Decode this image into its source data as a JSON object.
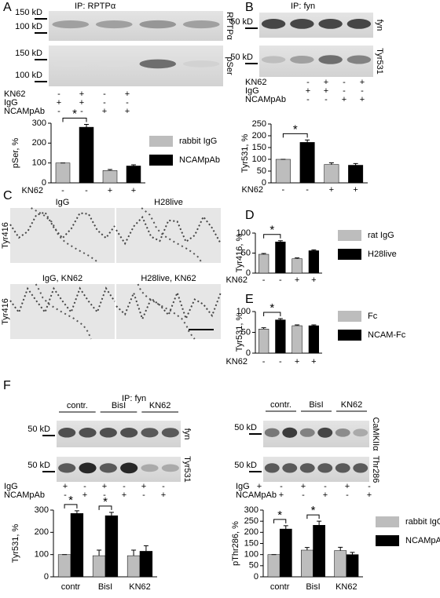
{
  "panel_letters": [
    "A",
    "B",
    "C",
    "D",
    "E",
    "F"
  ],
  "blots": [
    {
      "title": "IP: RPTPα",
      "markers": [
        "150 kD",
        "100 kD",
        "150 kD",
        "100 kD"
      ],
      "strips": [
        "RPTPα",
        "pSer"
      ],
      "rows": [
        {
          "name": "KN62",
          "signs": [
            "-",
            "+",
            "-",
            "+"
          ]
        },
        {
          "name": "IgG",
          "signs": [
            "+",
            "+",
            "-",
            "-"
          ]
        },
        {
          "name": "NCAMpAb",
          "signs": [
            "-",
            "-",
            "+",
            "+"
          ]
        }
      ]
    },
    {
      "title": "IP: fyn",
      "markers": [
        "50 kD",
        "50 kD"
      ],
      "strips": [
        "fyn",
        "Tyr531"
      ],
      "rows": [
        {
          "name": "KN62",
          "signs": [
            "-",
            "+",
            "-",
            "+"
          ]
        },
        {
          "name": "IgG",
          "signs": [
            "+",
            "+",
            "-",
            "-"
          ]
        },
        {
          "name": "NCAMpAb",
          "signs": [
            "-",
            "-",
            "+",
            "+"
          ]
        }
      ]
    },
    {
      "title": "IP: fyn",
      "groups": [
        "contr.",
        "BisI",
        "KN62"
      ],
      "markers": [
        "50 kD",
        "50 kD"
      ],
      "strips": [
        "fyn",
        "Tyr531"
      ],
      "rows": [
        {
          "name": "IgG",
          "signs": [
            "+",
            "-",
            "+",
            "-",
            "+",
            "-"
          ]
        },
        {
          "name": "NCAMpAb",
          "signs": [
            "-",
            "+",
            "-",
            "+",
            "-",
            "+"
          ]
        }
      ]
    },
    {
      "groups": [
        "contr.",
        "BisI",
        "KN62"
      ],
      "markers": [
        "50 kD",
        "50 kD"
      ],
      "strips": [
        "CaMKIIα",
        "Thr286"
      ],
      "rows": [
        {
          "name": "IgG",
          "signs": [
            "+",
            "-",
            "+",
            "-",
            "+",
            "-"
          ]
        },
        {
          "name": "NCAMpAb",
          "signs": [
            "-",
            "+",
            "-",
            "+",
            "-",
            "+"
          ]
        }
      ]
    }
  ],
  "micrographs": {
    "labels": [
      "IgG",
      "H28live",
      "IgG, KN62",
      "H28live, KN62"
    ],
    "stain": [
      "Tyr416",
      "Tyr416"
    ]
  },
  "chart_data": [
    {
      "type": "bar",
      "ylabel": "pSer, %",
      "xlabel": "KN62",
      "categories": [
        "-",
        "-",
        "+",
        "+"
      ],
      "ylim": [
        0,
        300
      ],
      "yticks": [
        0,
        100,
        200,
        300
      ],
      "annotations": [
        "*"
      ],
      "series": [
        {
          "name": "rabbit IgG",
          "color": "#bdbdbd",
          "values": [
            100,
            null,
            62,
            null
          ],
          "errors": [
            0,
            null,
            5,
            null
          ]
        },
        {
          "name": "NCAMpAb",
          "color": "#000000",
          "values": [
            null,
            280,
            null,
            85
          ],
          "errors": [
            null,
            14,
            null,
            6
          ]
        }
      ]
    },
    {
      "type": "bar",
      "ylabel": "Tyr531, %",
      "xlabel": "KN62",
      "categories": [
        "-",
        "-",
        "+",
        "+"
      ],
      "ylim": [
        0,
        250
      ],
      "yticks": [
        0,
        50,
        100,
        150,
        200,
        250
      ],
      "annotations": [
        "*"
      ],
      "series": [
        {
          "color": "#bdbdbd",
          "values": [
            100,
            null,
            78,
            null
          ],
          "errors": [
            0,
            null,
            7,
            null
          ]
        },
        {
          "color": "#000000",
          "values": [
            null,
            172,
            null,
            75
          ],
          "errors": [
            null,
            10,
            null,
            7
          ]
        }
      ]
    },
    {
      "type": "bar",
      "ylabel": "Tyr416, %",
      "xlabel": "KN62",
      "categories": [
        "-",
        "-",
        "+",
        "+"
      ],
      "ylim": [
        0,
        100
      ],
      "yticks": [
        0,
        50,
        100
      ],
      "annotations": [
        "*"
      ],
      "series": [
        {
          "name": "rat IgG",
          "color": "#bdbdbd",
          "values": [
            47,
            null,
            36,
            null
          ],
          "errors": [
            2,
            null,
            2,
            null
          ]
        },
        {
          "name": "H28live",
          "color": "#000000",
          "values": [
            null,
            78,
            null,
            56
          ],
          "errors": [
            null,
            3,
            null,
            2
          ]
        }
      ]
    },
    {
      "type": "bar",
      "ylabel": "Tyr531, %",
      "xlabel": "KN62",
      "categories": [
        "-",
        "-",
        "+",
        "+"
      ],
      "ylim": [
        0,
        100
      ],
      "yticks": [
        0,
        50,
        100
      ],
      "annotations": [
        "*"
      ],
      "series": [
        {
          "name": "Fc",
          "color": "#bdbdbd",
          "values": [
            58,
            null,
            66,
            null
          ],
          "errors": [
            3,
            null,
            2,
            null
          ]
        },
        {
          "name": "NCAM-Fc",
          "color": "#000000",
          "values": [
            null,
            80,
            null,
            66
          ],
          "errors": [
            null,
            3,
            null,
            2
          ]
        }
      ]
    },
    {
      "type": "bar",
      "ylabel": "Tyr531, %",
      "categories": [
        "contr",
        "BisI",
        "KN62"
      ],
      "ylim": [
        0,
        300
      ],
      "yticks": [
        0,
        100,
        200,
        300
      ],
      "annotations": [
        "*",
        "*"
      ],
      "series": [
        {
          "color": "#bdbdbd",
          "values": [
            100,
            95,
            95
          ],
          "errors": [
            0,
            25,
            25
          ]
        },
        {
          "color": "#000000",
          "values": [
            285,
            275,
            115
          ],
          "errors": [
            12,
            15,
            25
          ]
        }
      ]
    },
    {
      "type": "bar",
      "ylabel": "pThr286, %",
      "categories": [
        "contr",
        "BisI",
        "KN62"
      ],
      "ylim": [
        0,
        300
      ],
      "yticks": [
        0,
        50,
        100,
        150,
        200,
        250,
        300
      ],
      "annotations": [
        "*",
        "*"
      ],
      "series": [
        {
          "name": "rabbit IgG",
          "color": "#bdbdbd",
          "values": [
            100,
            120,
            118
          ],
          "errors": [
            0,
            12,
            15
          ]
        },
        {
          "name": "NCAMpAb",
          "color": "#000000",
          "values": [
            215,
            232,
            100
          ],
          "errors": [
            15,
            18,
            10
          ]
        }
      ]
    }
  ]
}
